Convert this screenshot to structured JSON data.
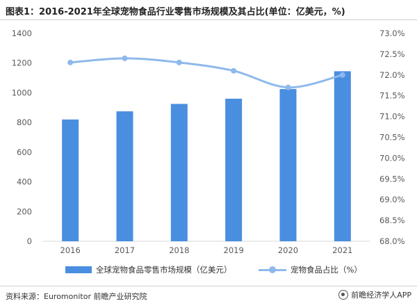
{
  "header": {
    "title": "图表1：2016-2021年全球宠物食品行业零售市场规模及其占比(单位：亿美元，%)"
  },
  "footer": {
    "source": "资料来源：Euromonitor 前瞻产业研究院",
    "brand": "前瞻经济学人APP"
  },
  "colors": {
    "bar": "#4a8ee0",
    "line": "#8eb9ec",
    "axis_text": "#595959"
  },
  "chart_data": {
    "type": "bar",
    "categories": [
      "2016",
      "2017",
      "2018",
      "2019",
      "2020",
      "2021"
    ],
    "series": [
      {
        "name": "全球宠物食品零售市场规模（亿美元）",
        "type": "bar",
        "axis": "left",
        "values": [
          820,
          875,
          925,
          960,
          1025,
          1145
        ]
      },
      {
        "name": "宠物食品占比（%）",
        "type": "line",
        "axis": "right",
        "values": [
          72.3,
          72.4,
          72.3,
          72.1,
          71.7,
          72.0
        ]
      }
    ],
    "y_left": {
      "min": 0,
      "max": 1400,
      "ticks": [
        "0",
        "200",
        "400",
        "600",
        "800",
        "1000",
        "1200",
        "1400"
      ]
    },
    "y_right": {
      "min": 68.0,
      "max": 73.0,
      "ticks": [
        "68.0%",
        "68.5%",
        "69.0%",
        "69.5%",
        "70.0%",
        "70.5%",
        "71.0%",
        "71.5%",
        "72.0%",
        "72.5%",
        "73.0%"
      ]
    },
    "grid": false,
    "legend": "bottom"
  }
}
